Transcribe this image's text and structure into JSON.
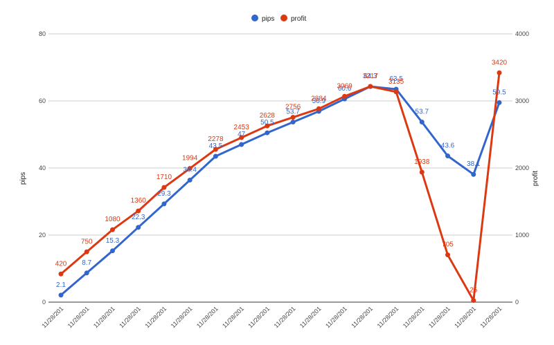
{
  "chart_data": {
    "type": "line",
    "categories": [
      "11/28/201",
      "11/28/201",
      "11/28/201",
      "11/28/201",
      "11/28/201",
      "11/28/201",
      "11/28/201",
      "11/28/201",
      "11/28/201",
      "11/28/201",
      "11/28/201",
      "11/28/201",
      "11/28/201",
      "11/28/201",
      "11/28/201",
      "11/28/201",
      "11/28/201",
      "11/28/201"
    ],
    "series": [
      {
        "name": "pips",
        "axis": "left",
        "color": "#3366cc",
        "values": [
          2.1,
          8.7,
          15.3,
          22.3,
          29.3,
          36.4,
          43.5,
          47,
          50.5,
          53.7,
          56.9,
          60.6,
          64.3,
          63.5,
          53.7,
          43.6,
          38.1,
          59.5
        ],
        "labels": [
          "2.1",
          "8.7",
          "15.3",
          "22.3",
          "29.3",
          "36.4",
          "43.5",
          "47",
          "50.5",
          "53.7",
          "56.9",
          "60.6",
          "64.3",
          "63.5",
          "53.7",
          "43.6",
          "38.1",
          "59.5"
        ]
      },
      {
        "name": "profit",
        "axis": "right",
        "color": "#dc3912",
        "values": [
          420,
          750,
          1080,
          1360,
          1710,
          1994,
          2278,
          2453,
          2628,
          2756,
          2884,
          3069,
          3217,
          3135,
          1938,
          705,
          25,
          3420
        ],
        "labels": [
          "420",
          "750",
          "1080",
          "1360",
          "1710",
          "1994",
          "2278",
          "2453",
          "2628",
          "2756",
          "2884",
          "3069",
          "3217",
          "3135",
          "1938",
          "705",
          "25",
          "3420"
        ]
      }
    ],
    "y_left": {
      "label": "pips",
      "range": [
        0,
        80
      ],
      "ticks": [
        "0",
        "20",
        "40",
        "60",
        "80"
      ]
    },
    "y_right": {
      "label": "profit",
      "range": [
        0,
        4000
      ],
      "ticks": [
        "0",
        "1000",
        "2000",
        "3000",
        "4000"
      ]
    },
    "grid": true,
    "legend": {
      "position": "top"
    }
  }
}
